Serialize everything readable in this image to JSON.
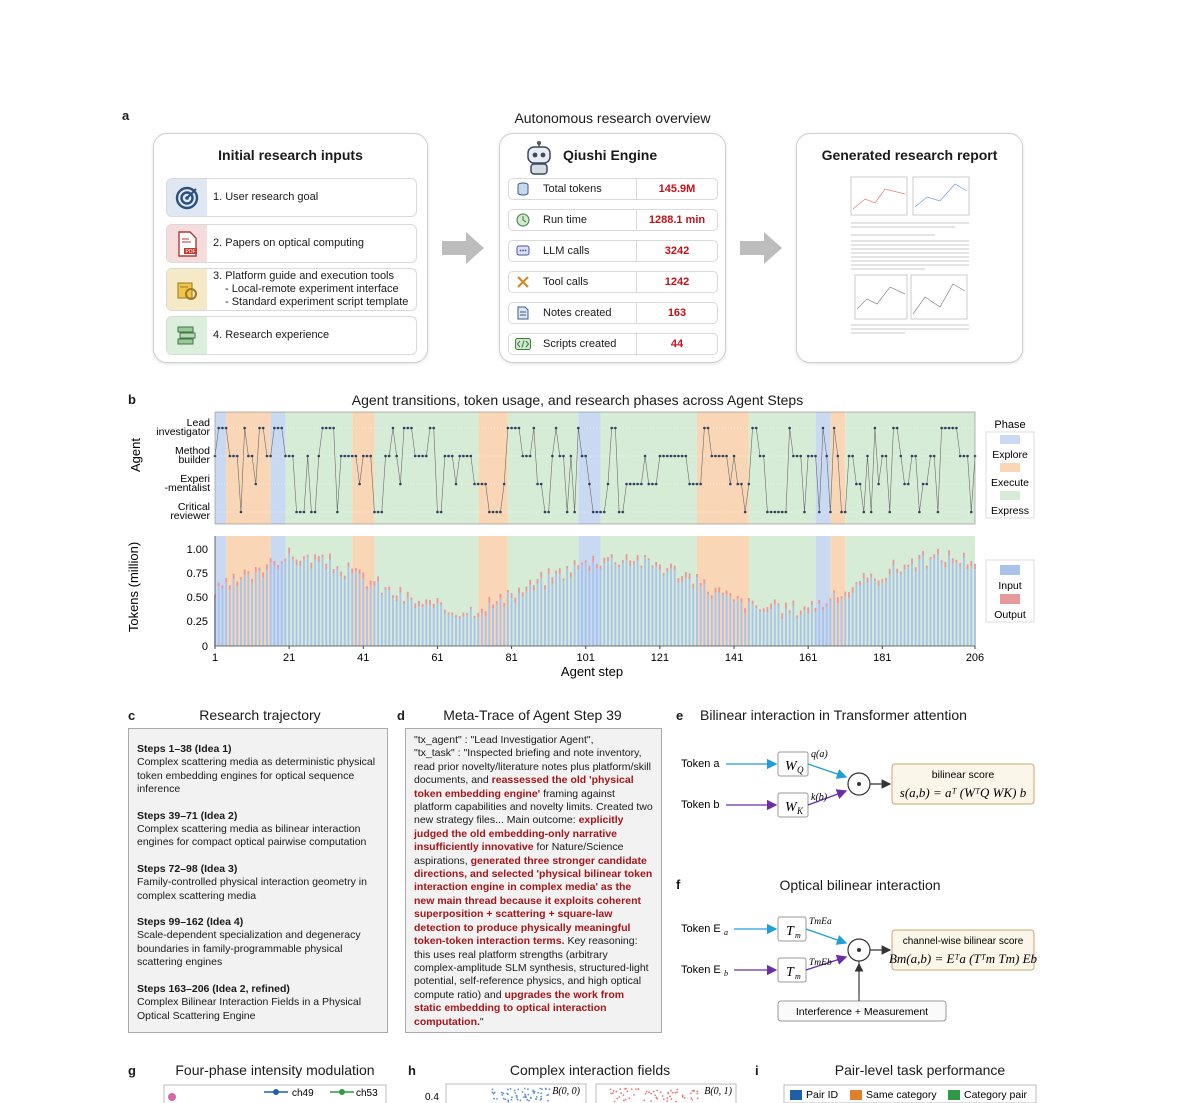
{
  "panel_a": {
    "letter": "a",
    "title": "Autonomous research overview",
    "inputs": {
      "title": "Initial research inputs",
      "items": [
        {
          "label": "1. User research goal",
          "icon": "target-icon",
          "bg": "#dfe7f2"
        },
        {
          "label": "2. Papers on optical computing",
          "icon": "pdf-icon",
          "bg": "#f6dddd"
        },
        {
          "label": "3. Platform guide and execution tools",
          "sub1": "- Local-remote experiment interface",
          "sub2": "- Standard experiment script template",
          "icon": "tools-icon",
          "bg": "#f5e9c8"
        },
        {
          "label": "4. Research experience",
          "icon": "books-icon",
          "bg": "#dcefdc"
        }
      ]
    },
    "engine": {
      "title": "Qiushi Engine",
      "metrics": [
        {
          "label": "Total tokens",
          "value": "145.9M",
          "icon": "database-icon",
          "color": "#dce6f3"
        },
        {
          "label": "Run time",
          "value": "1288.1  min",
          "icon": "clock-icon",
          "color": "#dcefdc"
        },
        {
          "label": "LLM calls",
          "value": "3242",
          "icon": "chat-icon",
          "color": "#dfe1f5"
        },
        {
          "label": "Tool calls",
          "value": "1242",
          "icon": "wrench-icon",
          "color": "#f8e6cf"
        },
        {
          "label": "Notes created",
          "value": "163",
          "icon": "note-icon",
          "color": "#dce6f3"
        },
        {
          "label": "Scripts created",
          "value": "44",
          "icon": "code-icon",
          "color": "#dcefdc"
        }
      ]
    },
    "report": {
      "title": "Generated research report"
    }
  },
  "panel_b": {
    "letter": "b",
    "title": "Agent transitions, token usage, and research phases across Agent Steps",
    "agent_axis": "Agent",
    "agents": [
      "Lead investigator",
      "Method builder",
      "Experi -mentalist",
      "Critical reviewer"
    ],
    "agent_lines": [
      [
        "Lead",
        "investigator"
      ],
      [
        "Method",
        "builder"
      ],
      [
        "Experi",
        "-mentalist"
      ],
      [
        "Critical",
        "reviewer"
      ]
    ],
    "phase_legend_title": "Phase",
    "phases": [
      {
        "name": "Explore",
        "color": "#c9d9f2"
      },
      {
        "name": "Execute",
        "color": "#f8d6b6"
      },
      {
        "name": "Express",
        "color": "#d7ecd7"
      }
    ],
    "tokens_axis": "Tokens (million)",
    "token_ticks": [
      "1.00",
      "0.75",
      "0.50",
      "0.25",
      "0"
    ],
    "token_legend": [
      {
        "name": "Input",
        "color": "#a9c3ea"
      },
      {
        "name": "Output",
        "color": "#e79a9a"
      }
    ],
    "x_label": "Agent step",
    "x_ticks": [
      "1",
      "21",
      "41",
      "61",
      "81",
      "101",
      "121",
      "141",
      "161",
      "181",
      "206"
    ]
  },
  "chart_data": {
    "type": "bar",
    "x_range": [
      1,
      206
    ],
    "ylim": [
      0,
      1.0
    ],
    "xlabel": "Agent step",
    "ylabel": "Tokens (million)",
    "phase_segments": [
      {
        "start": 1,
        "end": 4,
        "phase": "Explore"
      },
      {
        "start": 4,
        "end": 16,
        "phase": "Execute"
      },
      {
        "start": 16,
        "end": 20,
        "phase": "Explore"
      },
      {
        "start": 20,
        "end": 38,
        "phase": "Express"
      },
      {
        "start": 38,
        "end": 44,
        "phase": "Execute"
      },
      {
        "start": 44,
        "end": 72,
        "phase": "Express"
      },
      {
        "start": 72,
        "end": 80,
        "phase": "Execute"
      },
      {
        "start": 80,
        "end": 99,
        "phase": "Express"
      },
      {
        "start": 99,
        "end": 105,
        "phase": "Explore"
      },
      {
        "start": 105,
        "end": 131,
        "phase": "Express"
      },
      {
        "start": 131,
        "end": 145,
        "phase": "Execute"
      },
      {
        "start": 145,
        "end": 163,
        "phase": "Express"
      },
      {
        "start": 163,
        "end": 167,
        "phase": "Explore"
      },
      {
        "start": 167,
        "end": 171,
        "phase": "Execute"
      },
      {
        "start": 171,
        "end": 206,
        "phase": "Express"
      }
    ]
  },
  "panel_c": {
    "letter": "c",
    "title": "Research trajectory",
    "steps": [
      {
        "head": "Steps 1–38 (Idea 1)",
        "body": "Complex scattering media as deterministic physical token embedding engines for optical sequence inference"
      },
      {
        "head": "Steps 39–71 (Idea 2)",
        "body": "Complex scattering media as bilinear interaction engines for compact optical pairwise computation"
      },
      {
        "head": "Steps 72–98 (Idea 3)",
        "body": "Family-controlled physical interaction geometry in complex scattering media"
      },
      {
        "head": "Steps 99–162 (Idea 4)",
        "body": "Scale-dependent specialization and degeneracy boundaries in family-programmable physical scattering engines"
      },
      {
        "head": "Steps 163–206 (Idea 2, refined)",
        "body": "Complex Bilinear Interaction Fields in a Physical Optical Scattering Engine"
      }
    ]
  },
  "panel_d": {
    "letter": "d",
    "title": "Meta-Trace of Agent Step 39",
    "line1": "\"tx_agent\" : \"Lead Investigatior Agent\",",
    "seg1": "\"tx_task\" : \"Inspected briefing and note inventory, read prior novelty/literature notes plus platform/skill documents, and ",
    "red1": "reassessed the old 'physical token embedding engine'",
    "seg2": " framing against platform capabilities and novelty limits. Created two new strategy files... Main outcome: ",
    "red2": "explicitly judged the old embedding-only narrative insufficiently innovative",
    "seg3": " for Nature/Science aspirations, ",
    "red3": "generated three stronger candidate directions, and selected 'physical bilinear token interaction engine in complex media' as the new main thread because it exploits coherent superposition + scattering + square-law detection to produce physically meaningful token-token interaction terms.",
    "seg4": " Key reasoning: this uses real platform strengths (arbitrary complex-amplitude SLM synthesis, structured-light potential, self-reference physics, and high optical compute ratio) and ",
    "red4": "upgrades the work from static embedding to optical interaction computation.",
    "seg5": "\""
  },
  "panel_e": {
    "letter": "e",
    "title": "Bilinear interaction in Transformer attention",
    "token_a": "Token a",
    "token_b": "Token b",
    "wq": "W",
    "wq_sub": "Q",
    "wk": "W",
    "wk_sub": "K",
    "qa": "q(a)",
    "kb": "k(b)",
    "score_label": "bilinear score",
    "score_formula": "s(a,b) = aᵀ (WᵀQ WK) b"
  },
  "panel_f": {
    "letter": "f",
    "title": "Optical bilinear interaction",
    "token_a": "Token E",
    "token_a_sub": "a",
    "token_b": "Token E",
    "token_b_sub": "b",
    "tm": "T",
    "tm_sub": "m",
    "out_a": "TmEa",
    "out_b": "TmEb",
    "score_label": "channel-wise bilinear score",
    "score_formula": "Bm(a,b) = Eᵀa (Tᵀm Tm) Eb",
    "interference": "Interference + Measurement"
  },
  "bottom": {
    "g_letter": "g",
    "g_title": "Four-phase intensity modulation",
    "g_legend": [
      "ch49",
      "ch53"
    ],
    "h_letter": "h",
    "h_title": "Complex interaction fields",
    "h_tick": "0.4",
    "h_label1": "B(0, 0)",
    "h_label2": "B(0, 1)",
    "i_letter": "i",
    "i_title": "Pair-level task performance",
    "i_legend": [
      {
        "name": "Pair ID",
        "color": "#1f5fa8"
      },
      {
        "name": "Same category",
        "color": "#e0802b"
      },
      {
        "name": "Category pair",
        "color": "#2e9a45"
      }
    ]
  }
}
